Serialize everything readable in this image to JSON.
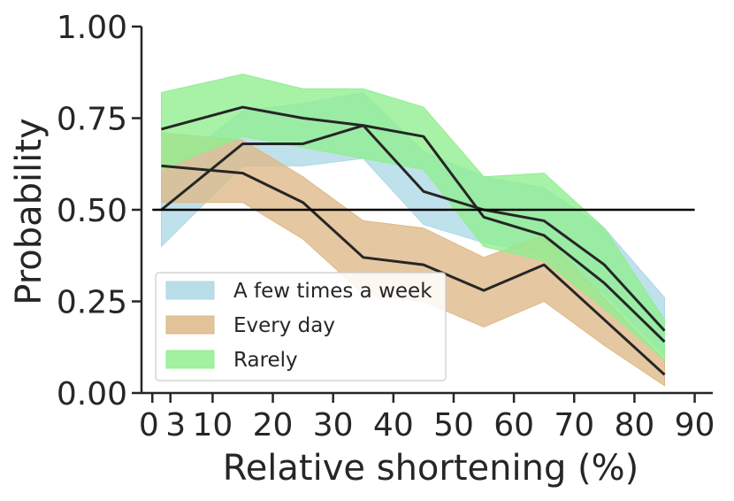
{
  "chart_data": {
    "type": "line",
    "title": "",
    "xlabel": "Relative shortening (%)",
    "ylabel": "Probability",
    "xlim": [
      -1.8,
      93
    ],
    "ylim": [
      0,
      1
    ],
    "x_ticks": [
      0,
      3,
      10,
      20,
      30,
      40,
      50,
      60,
      70,
      80,
      90
    ],
    "x_tick_labels": [
      "0",
      "3",
      "10",
      "20",
      "30",
      "40",
      "50",
      "60",
      "70",
      "80",
      "90"
    ],
    "y_ticks": [
      0,
      0.25,
      0.5,
      0.75,
      1.0
    ],
    "y_tick_labels": [
      "0.00",
      "0.25",
      "0.50",
      "0.75",
      "1.00"
    ],
    "reference_line": {
      "y": 0.5,
      "x_start": 0,
      "x_end": 90
    },
    "x": [
      1.5,
      15,
      25,
      35,
      45,
      55,
      65,
      75,
      85
    ],
    "series": [
      {
        "name": "A few times a week",
        "color": "#add8e6",
        "line_color": "#262626",
        "values": [
          0.5,
          0.68,
          0.68,
          0.73,
          0.55,
          0.5,
          0.47,
          0.35,
          0.17
        ],
        "lower": [
          0.4,
          0.62,
          0.62,
          0.64,
          0.46,
          0.41,
          0.38,
          0.27,
          0.1
        ],
        "upper": [
          0.6,
          0.77,
          0.79,
          0.82,
          0.66,
          0.59,
          0.56,
          0.45,
          0.26
        ]
      },
      {
        "name": "Every day",
        "color": "#deb887",
        "line_color": "#262626",
        "values": [
          0.62,
          0.6,
          0.52,
          0.37,
          0.35,
          0.28,
          0.35,
          0.2,
          0.05
        ],
        "lower": [
          0.52,
          0.52,
          0.42,
          0.27,
          0.25,
          0.18,
          0.25,
          0.13,
          0.02
        ],
        "upper": [
          0.71,
          0.69,
          0.59,
          0.47,
          0.45,
          0.37,
          0.43,
          0.26,
          0.09
        ]
      },
      {
        "name": "Rarely",
        "color": "#90ee90",
        "line_color": "#262626",
        "values": [
          0.72,
          0.78,
          0.75,
          0.73,
          0.7,
          0.48,
          0.43,
          0.3,
          0.14
        ],
        "lower": [
          0.61,
          0.7,
          0.67,
          0.64,
          0.61,
          0.4,
          0.36,
          0.23,
          0.09
        ],
        "upper": [
          0.82,
          0.87,
          0.83,
          0.83,
          0.78,
          0.59,
          0.6,
          0.45,
          0.2
        ]
      }
    ],
    "legend": {
      "placement": "lower-left",
      "entries": [
        "A few times a week",
        "Every day",
        "Rarely"
      ]
    },
    "grid": false
  }
}
